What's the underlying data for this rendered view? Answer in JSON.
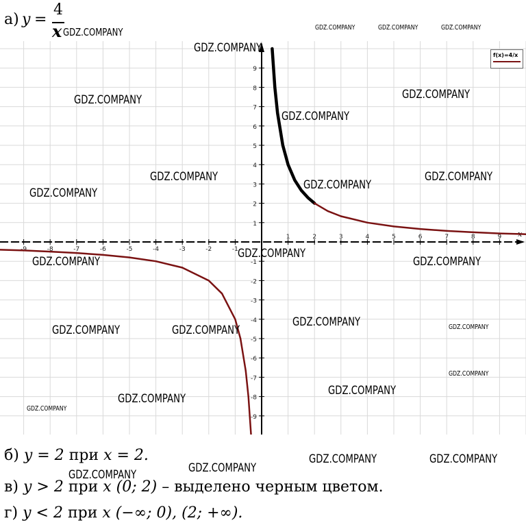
{
  "header": {
    "prefix": "а)",
    "y_label": "y",
    "equals": "=",
    "fraction_numerator": "4",
    "fraction_denominator": "x"
  },
  "legend": {
    "label": "f(x)=4/x",
    "color": "#7a1212"
  },
  "chart_data": {
    "type": "line",
    "title": "",
    "function": "4/x",
    "xlabel": "x",
    "ylabel": "",
    "xlim": [
      -10,
      10
    ],
    "ylim": [
      -10,
      10
    ],
    "x_ticks": [
      -9,
      -8,
      -7,
      -6,
      -5,
      -4,
      -3,
      -2,
      -1,
      1,
      2,
      3,
      4,
      5,
      6,
      7,
      8,
      9
    ],
    "y_ticks": [
      9,
      8,
      7,
      6,
      5,
      4,
      3,
      2,
      1,
      -1,
      -2,
      -3,
      -4,
      -5,
      -6,
      -7,
      -8,
      -9
    ],
    "x_tick_labels": [
      "-9",
      "-8",
      "-7",
      "-6",
      "-5",
      "-4",
      "-3",
      "-2",
      "-1",
      "1",
      "2",
      "3",
      "4",
      "5",
      "6",
      "7",
      "8",
      "9"
    ],
    "y_tick_labels": [
      "9",
      "8",
      "7",
      "6",
      "5",
      "4",
      "3",
      "2",
      "1",
      "-1",
      "-2",
      "-3",
      "-4",
      "-5",
      "-6",
      "-7",
      "-8",
      "-9"
    ],
    "grid": true,
    "series": [
      {
        "x": [
          0.4,
          0.5,
          0.6,
          0.8,
          1,
          1.25,
          1.5,
          1.75,
          2
        ],
        "y": [
          10,
          8,
          6.67,
          5,
          4,
          3.2,
          2.67,
          2.29,
          2
        ],
        "color": "#000000",
        "highlight": true
      },
      {
        "x": [
          2,
          2.5,
          3,
          4,
          5,
          6,
          7,
          8,
          9,
          10
        ],
        "y": [
          2,
          1.6,
          1.33,
          1,
          0.8,
          0.67,
          0.57,
          0.5,
          0.44,
          0.4
        ],
        "color": "#7a1212"
      },
      {
        "x": [
          -10,
          -9,
          -8,
          -7,
          -6,
          -5,
          -4,
          -3,
          -2,
          -1.5,
          -1,
          -0.8,
          -0.6,
          -0.5,
          -0.4
        ],
        "y": [
          -0.4,
          -0.44,
          -0.5,
          -0.57,
          -0.67,
          -0.8,
          -1,
          -1.33,
          -2,
          -2.67,
          -4,
          -5,
          -6.67,
          -8,
          -10
        ],
        "color": "#7a1212"
      }
    ]
  },
  "answers": {
    "b": {
      "prefix": "б)",
      "expr": "y = 2",
      "word": "при",
      "cond": "x = 2."
    },
    "c": {
      "prefix": "в)",
      "expr": "y > 2",
      "word": "при",
      "cond": "x (0; 2)",
      "note": "– выделено черным цветом."
    },
    "d": {
      "prefix": "г)",
      "expr": "y < 2",
      "word": "при",
      "cond": "x (−∞;  0), (2;  +∞)."
    }
  },
  "watermarks": [
    "GDZ.COMPANY",
    "GDZ.COMPANY",
    "GDZ.COMPANY",
    "GDZ.COMPANY",
    "GDZ.COMPANY",
    "GDZ.COMPANY",
    "GDZ.COMPANY",
    "GDZ.COMPANY",
    "GDZ.COMPANY",
    "GDZ.COMPANY",
    "GDZ.COMPANY",
    "GDZ.COMPANY",
    "GDZ.COMPANY",
    "GDZ.COMPANY",
    "GDZ.COMPANY",
    "GDZ.COMPANY",
    "GDZ.COMPANY",
    "GDZ.COMPANY",
    "GDZ.COMPANY",
    "GDZ.COMPANY",
    "GDZ.COMPANY",
    "GDZ.COMPANY",
    "GDZ.COMPANY",
    "GDZ.COMPANY",
    "GDZ.COMPANY",
    "GDZ.COMPANY",
    "GDZ.COMPANY",
    "GDZ.COMPANY"
  ]
}
